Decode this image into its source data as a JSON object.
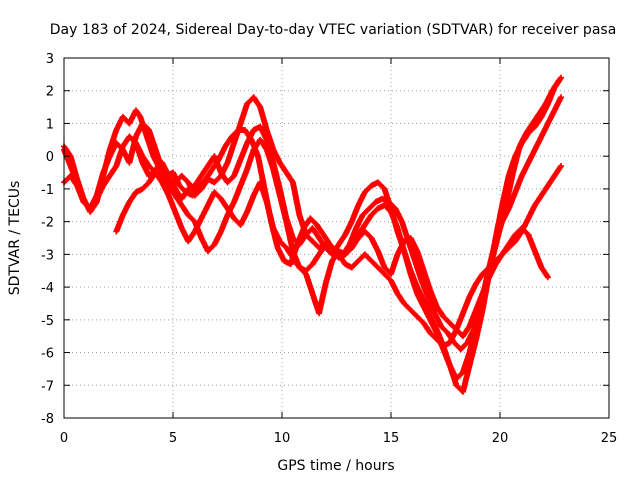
{
  "chart_data": {
    "type": "scatter",
    "title": "Day 183 of 2024, Sidereal Day-to-day VTEC variation (SDTVAR) for receiver pasa",
    "xlabel": "GPS time / hours",
    "ylabel": "SDTVAR / TECUs",
    "xlim": [
      0,
      25
    ],
    "ylim": [
      -8,
      3
    ],
    "xticks": [
      "0",
      "5",
      "10",
      "15",
      "20",
      "25"
    ],
    "yticks": [
      "-8",
      "-7",
      "-6",
      "-5",
      "-4",
      "-3",
      "-2",
      "-1",
      "0",
      "1",
      "2",
      "3"
    ],
    "grid": true,
    "marker": "+",
    "color": "#ff0000",
    "series": [
      {
        "x": [
          0.0,
          0.3,
          0.6,
          0.9,
          1.2,
          1.5,
          1.8,
          2.1,
          2.4,
          2.7,
          3.0,
          3.3,
          3.5,
          3.8,
          4.1,
          4.4,
          4.7,
          5.0,
          5.3,
          5.6,
          5.9,
          6.2,
          6.5,
          6.8,
          7.1,
          7.4,
          7.7,
          8.0,
          8.3,
          8.6,
          8.9,
          9.2,
          9.5,
          9.8,
          10.1,
          10.4,
          10.7,
          11.0,
          11.3,
          11.6,
          11.9,
          12.2,
          12.5,
          12.8,
          13.1,
          13.4,
          13.7,
          14.0,
          14.3,
          14.6,
          14.9,
          15.2,
          15.5,
          15.8,
          16.1,
          16.4,
          16.7,
          17.0,
          17.3,
          17.6,
          17.9,
          18.2,
          18.5,
          18.8,
          19.1,
          19.4,
          19.7,
          20.0,
          20.3,
          20.6,
          20.9,
          21.2,
          21.5,
          21.8,
          22.1,
          22.4,
          22.7
        ],
        "y": [
          0.3,
          0.0,
          -0.7,
          -1.3,
          -1.7,
          -1.4,
          -0.6,
          0.2,
          0.8,
          1.2,
          1.0,
          1.4,
          1.2,
          0.6,
          0.0,
          -0.4,
          -0.6,
          -0.5,
          -0.9,
          -1.1,
          -1.2,
          -0.9,
          -0.7,
          -0.4,
          -0.1,
          0.3,
          0.6,
          0.8,
          0.8,
          0.5,
          0.0,
          -1.0,
          -2.0,
          -2.8,
          -3.2,
          -3.3,
          -2.7,
          -2.2,
          -1.9,
          -2.1,
          -2.4,
          -2.7,
          -2.9,
          -3.0,
          -2.7,
          -2.2,
          -1.8,
          -1.6,
          -1.4,
          -1.3,
          -1.4,
          -1.6,
          -2.0,
          -2.6,
          -3.2,
          -3.8,
          -4.3,
          -4.8,
          -5.2,
          -5.4,
          -5.7,
          -5.9,
          -5.7,
          -5.3,
          -4.6,
          -3.8,
          -3.0,
          -2.2,
          -1.4,
          -0.5,
          0.3,
          0.7,
          1.0,
          1.3,
          1.6,
          2.0,
          2.3
        ]
      },
      {
        "x": [
          0.0,
          0.3,
          0.6,
          0.9,
          1.2,
          1.5,
          1.8,
          2.1,
          2.4,
          2.7,
          3.0,
          3.3,
          3.6,
          3.9,
          4.2,
          4.5,
          4.8,
          5.1,
          5.4,
          5.7,
          6.0,
          6.3,
          6.6,
          6.9,
          7.2,
          7.5,
          7.8,
          8.1,
          8.4,
          8.7,
          9.0,
          9.3,
          9.6,
          9.9,
          10.2,
          10.5,
          10.8,
          11.1,
          11.4,
          11.7,
          12.0,
          12.3,
          12.6,
          12.9,
          13.2,
          13.5,
          13.8,
          14.1,
          14.4,
          14.7,
          15.0,
          15.3,
          15.6,
          15.9,
          16.2,
          16.5,
          16.8,
          17.1,
          17.4,
          17.7,
          18.0,
          18.3,
          18.6,
          18.9,
          19.2,
          19.5,
          19.8,
          20.1,
          20.4,
          20.7,
          21.0,
          21.3,
          21.6,
          21.9,
          22.2,
          22.5,
          22.8
        ],
        "y": [
          -0.8,
          -0.6,
          -0.9,
          -1.4,
          -1.6,
          -1.2,
          -0.5,
          0.0,
          0.4,
          0.2,
          -0.2,
          0.6,
          1.0,
          0.8,
          0.2,
          -0.4,
          -0.8,
          -0.8,
          -0.6,
          -0.8,
          -1.2,
          -1.0,
          -0.7,
          -0.8,
          -0.6,
          -0.2,
          0.4,
          1.0,
          1.6,
          1.8,
          1.5,
          0.8,
          0.2,
          -0.2,
          -0.5,
          -0.8,
          -1.8,
          -2.4,
          -2.6,
          -2.8,
          -2.7,
          -2.9,
          -3.1,
          -3.0,
          -2.8,
          -2.4,
          -2.1,
          -1.8,
          -1.6,
          -1.5,
          -1.7,
          -2.2,
          -2.9,
          -3.5,
          -4.0,
          -4.4,
          -4.9,
          -5.3,
          -5.8,
          -6.4,
          -7.0,
          -7.2,
          -6.4,
          -5.6,
          -4.7,
          -3.6,
          -2.5,
          -1.5,
          -0.6,
          0.0,
          0.4,
          0.7,
          0.9,
          1.2,
          1.6,
          2.1,
          2.4
        ]
      },
      {
        "x": [
          0.0,
          0.3,
          0.6,
          0.9,
          1.2,
          1.5,
          1.8,
          2.1,
          2.4,
          2.7,
          3.0,
          3.3,
          3.6,
          3.9,
          4.2,
          4.5,
          4.8,
          5.1,
          5.4,
          5.7,
          6.0,
          6.3,
          6.6,
          6.9,
          7.2,
          7.5,
          7.8,
          8.1,
          8.4,
          8.7,
          9.0,
          9.3,
          9.6,
          9.9,
          10.2,
          10.5,
          10.8,
          11.1,
          11.4,
          11.7,
          12.0,
          12.3,
          12.6,
          12.9,
          13.2,
          13.5,
          13.8,
          14.1,
          14.4,
          14.7,
          15.0,
          15.3,
          15.6,
          15.9,
          16.2,
          16.5,
          16.8,
          17.1,
          17.4,
          17.7,
          18.0,
          18.3,
          18.6,
          18.9,
          19.2,
          19.5,
          19.8,
          20.1,
          20.4,
          20.7,
          21.0,
          21.3,
          21.6,
          21.9,
          22.2,
          22.5,
          22.8
        ],
        "y": [
          0.2,
          -0.3,
          -0.8,
          -1.4,
          -1.6,
          -1.3,
          -0.9,
          -0.6,
          -0.3,
          0.3,
          0.6,
          0.4,
          -0.2,
          -0.6,
          -0.4,
          -0.2,
          -0.6,
          -1.0,
          -1.3,
          -1.0,
          -0.9,
          -0.6,
          -0.3,
          0.0,
          -0.5,
          -0.8,
          -0.6,
          -0.1,
          0.4,
          0.8,
          0.9,
          0.5,
          -0.2,
          -1.0,
          -1.9,
          -2.5,
          -2.7,
          -2.4,
          -2.2,
          -2.5,
          -2.8,
          -3.0,
          -2.7,
          -2.4,
          -2.0,
          -1.5,
          -1.1,
          -0.9,
          -0.8,
          -1.0,
          -1.6,
          -2.3,
          -2.9,
          -3.6,
          -4.2,
          -4.6,
          -5.0,
          -5.4,
          -5.9,
          -6.4,
          -6.8,
          -6.6,
          -6.0,
          -5.2,
          -4.3,
          -3.4,
          -2.6,
          -2.0,
          -1.6,
          -1.1,
          -0.6,
          -0.2,
          0.2,
          0.6,
          1.0,
          1.4,
          1.8
        ]
      },
      {
        "x": [
          2.4,
          2.7,
          3.0,
          3.3,
          3.6,
          3.9,
          4.2,
          4.5,
          4.8,
          5.1,
          5.4,
          5.7,
          6.0,
          6.3,
          6.6,
          6.9,
          7.2,
          7.5,
          7.8,
          8.1,
          8.4,
          8.7,
          9.0,
          9.3,
          9.6,
          9.9,
          10.2,
          10.5,
          10.8,
          11.1,
          11.4,
          11.7,
          12.0,
          12.3,
          12.6,
          12.9,
          13.2,
          13.5,
          13.8,
          14.1,
          14.4,
          14.7,
          15.0,
          15.3,
          15.6,
          15.9,
          16.2,
          16.5,
          16.8,
          17.1,
          17.4,
          17.7,
          18.0,
          18.3,
          18.6,
          18.9,
          19.2,
          19.5,
          19.8,
          20.1,
          20.4,
          20.7,
          21.0,
          21.3,
          21.6,
          21.9,
          22.2,
          22.5,
          22.8
        ],
        "y": [
          -2.3,
          -1.8,
          -1.4,
          -1.1,
          -1.0,
          -0.8,
          -0.5,
          -0.6,
          -0.9,
          -1.2,
          -1.5,
          -1.8,
          -2.0,
          -2.5,
          -2.9,
          -2.7,
          -2.3,
          -1.8,
          -1.4,
          -0.9,
          -0.4,
          0.2,
          0.5,
          0.2,
          -0.4,
          -1.2,
          -2.0,
          -2.9,
          -3.4,
          -3.5,
          -3.3,
          -3.0,
          -2.7,
          -2.8,
          -3.0,
          -3.3,
          -3.4,
          -3.2,
          -3.0,
          -3.2,
          -3.4,
          -3.6,
          -3.8,
          -4.2,
          -4.5,
          -4.7,
          -4.9,
          -5.1,
          -5.4,
          -5.6,
          -5.8,
          -5.7,
          -5.3,
          -4.8,
          -4.3,
          -3.9,
          -3.6,
          -3.4,
          -3.2,
          -3.0,
          -2.8,
          -2.6,
          -2.3,
          -1.9,
          -1.5,
          -1.2,
          -0.9,
          -0.6,
          -0.3
        ]
      },
      {
        "x": [
          3.3,
          3.6,
          3.9,
          4.2,
          4.5,
          4.8,
          5.1,
          5.4,
          5.7,
          6.0,
          6.3,
          6.6,
          6.9,
          7.2,
          7.5,
          7.8,
          8.1,
          8.4,
          8.7,
          9.0,
          9.3,
          9.6,
          9.9,
          10.2,
          10.5,
          10.8,
          11.1,
          11.4,
          11.7,
          12.0,
          12.3,
          12.6,
          12.9,
          13.2,
          13.5,
          13.8,
          14.1,
          14.4,
          14.7,
          15.0,
          15.3,
          15.6,
          15.9,
          16.2,
          16.5,
          16.8,
          17.1,
          17.4,
          17.7,
          18.0,
          18.3,
          18.6,
          18.9,
          19.2,
          19.5,
          19.8,
          20.1,
          20.4,
          20.7,
          21.0,
          21.3,
          21.6,
          21.9,
          22.2
        ],
        "y": [
          0.4,
          0.0,
          -0.3,
          -0.5,
          -0.8,
          -1.2,
          -1.7,
          -2.2,
          -2.6,
          -2.3,
          -1.9,
          -1.5,
          -1.1,
          -1.3,
          -1.6,
          -1.9,
          -2.1,
          -1.7,
          -1.2,
          -0.8,
          -1.4,
          -2.2,
          -2.6,
          -2.8,
          -3.1,
          -3.4,
          -3.6,
          -4.2,
          -4.8,
          -3.9,
          -3.2,
          -2.9,
          -3.0,
          -2.8,
          -2.5,
          -2.3,
          -2.5,
          -2.9,
          -3.4,
          -3.6,
          -3.0,
          -2.6,
          -2.5,
          -2.9,
          -3.5,
          -4.1,
          -4.6,
          -4.9,
          -5.1,
          -5.3,
          -5.5,
          -5.2,
          -4.7,
          -4.2,
          -3.7,
          -3.3,
          -3.0,
          -2.7,
          -2.4,
          -2.2,
          -2.4,
          -2.9,
          -3.4,
          -3.7
        ]
      }
    ]
  }
}
